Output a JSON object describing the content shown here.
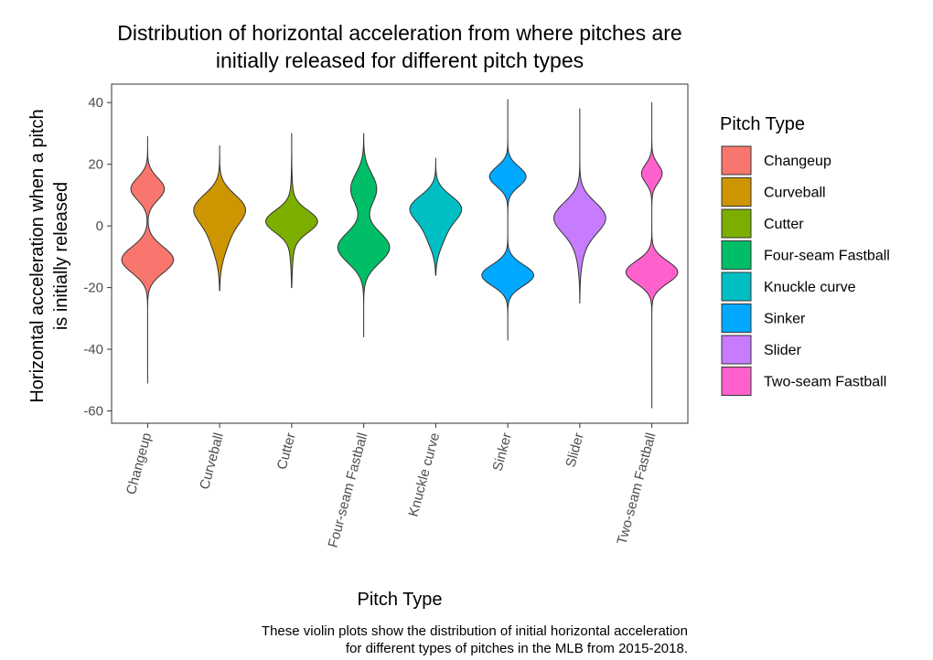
{
  "chart_data": {
    "type": "violin",
    "title_line1": "Distribution of horizontal acceleration from where pitches are",
    "title_line2": "initially released for different pitch types",
    "xlabel": "Pitch Type",
    "ylabel_line1": "Horizontal acceleration when a pitch",
    "ylabel_line2": "is initially released",
    "ylim": [
      -64,
      46
    ],
    "yticks": [
      40,
      20,
      0,
      -20,
      -40,
      -60
    ],
    "legend_title": "Pitch Type",
    "legend_position": "right",
    "caption_line1": "These violin plots show the distribution of initial horizontal acceleration",
    "caption_line2": "for different types of pitches in the MLB from 2015-2018.",
    "categories": [
      "Changeup",
      "Curveball",
      "Cutter",
      "Four-seam Fastball",
      "Knuckle curve",
      "Sinker",
      "Slider",
      "Two-seam Fastball"
    ],
    "series": [
      {
        "name": "Changeup",
        "color": "#F8766D",
        "min": -51,
        "max": 29,
        "modes": [
          {
            "c": 12,
            "s": 3.6,
            "w": 0.55
          },
          {
            "c": -11,
            "s": 4.2,
            "w": 0.85
          }
        ]
      },
      {
        "name": "Curveball",
        "color": "#CD9600",
        "min": -21,
        "max": 26,
        "modes": [
          {
            "c": 6,
            "s": 4.5,
            "w": 0.95
          },
          {
            "c": -2,
            "s": 6.5,
            "w": 0.45
          }
        ]
      },
      {
        "name": "Cutter",
        "color": "#7CAE00",
        "min": -20,
        "max": 30,
        "modes": [
          {
            "c": 1.5,
            "s": 3.5,
            "w": 1.0
          },
          {
            "c": 0,
            "s": 8,
            "w": 0.15
          }
        ]
      },
      {
        "name": "Four-seam Fastball",
        "color": "#00BE67",
        "min": -36,
        "max": 30,
        "modes": [
          {
            "c": 12,
            "s": 5,
            "w": 0.35
          },
          {
            "c": -7,
            "s": 5,
            "w": 0.7
          }
        ]
      },
      {
        "name": "Knuckle curve",
        "color": "#00BFC4",
        "min": -16,
        "max": 22,
        "modes": [
          {
            "c": 6,
            "s": 4,
            "w": 0.9
          },
          {
            "c": -2,
            "s": 5,
            "w": 0.35
          }
        ]
      },
      {
        "name": "Sinker",
        "color": "#00A9FF",
        "min": -37,
        "max": 41,
        "modes": [
          {
            "c": 16,
            "s": 3.2,
            "w": 0.6
          },
          {
            "c": -16,
            "s": 3.4,
            "w": 0.85
          }
        ]
      },
      {
        "name": "Slider",
        "color": "#C77CFF",
        "min": -25,
        "max": 38,
        "modes": [
          {
            "c": 3,
            "s": 4.8,
            "w": 1.0
          },
          {
            "c": -3,
            "s": 7,
            "w": 0.25
          }
        ]
      },
      {
        "name": "Two-seam Fastball",
        "color": "#FF61CC",
        "min": -59,
        "max": 40,
        "modes": [
          {
            "c": 17,
            "s": 3,
            "w": 0.4
          },
          {
            "c": -15,
            "s": 3.6,
            "w": 1.0
          }
        ]
      }
    ]
  }
}
